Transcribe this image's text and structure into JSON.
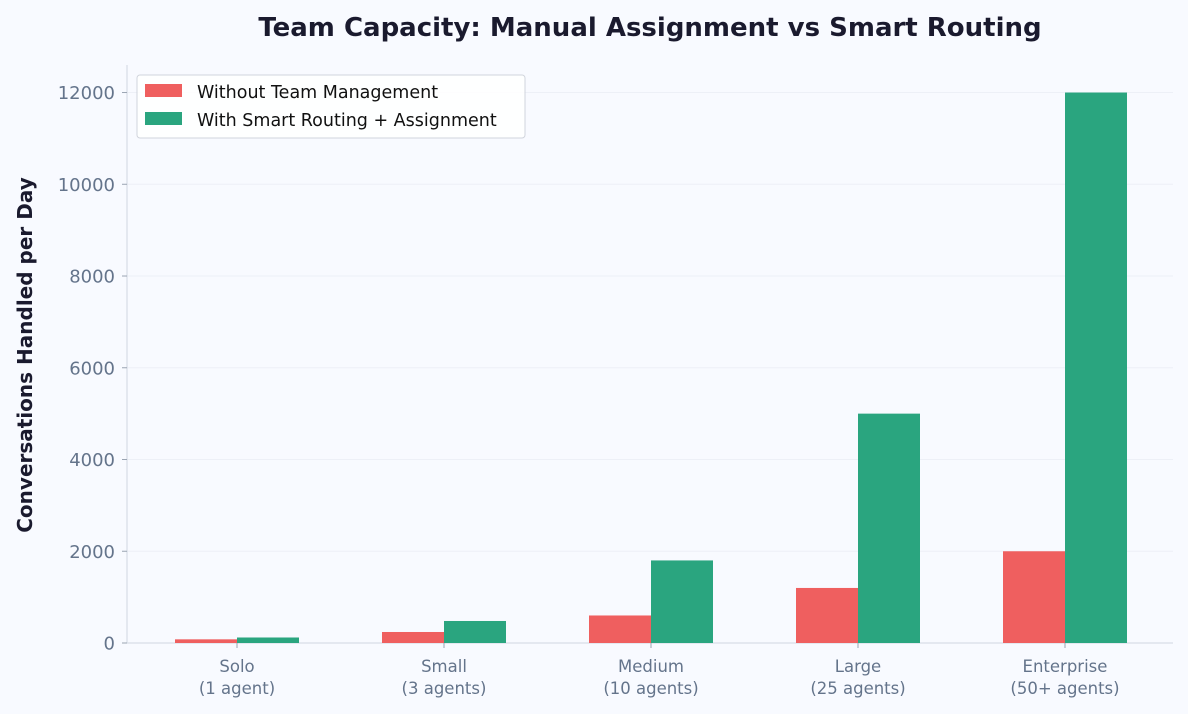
{
  "chart_data": {
    "type": "bar",
    "title": "Team Capacity: Manual Assignment vs Smart Routing",
    "xlabel": "",
    "ylabel": "Conversations Handled per Day",
    "categories": [
      [
        "Solo",
        "(1 agent)"
      ],
      [
        "Small",
        "(3 agents)"
      ],
      [
        "Medium",
        "(10 agents)"
      ],
      [
        "Large",
        "(25 agents)"
      ],
      [
        "Enterprise",
        "(50+ agents)"
      ]
    ],
    "series": [
      {
        "name": "Without Team Management",
        "color": "#ef5f5f",
        "values": [
          80,
          240,
          600,
          1200,
          2000
        ]
      },
      {
        "name": "With Smart Routing + Assignment",
        "color": "#2aa57f",
        "values": [
          120,
          480,
          1800,
          5000,
          12000
        ]
      }
    ],
    "ylim": [
      0,
      12600
    ],
    "yticks": [
      0,
      2000,
      4000,
      6000,
      8000,
      10000,
      12000
    ],
    "grid": true,
    "legend_position": "top-left"
  }
}
